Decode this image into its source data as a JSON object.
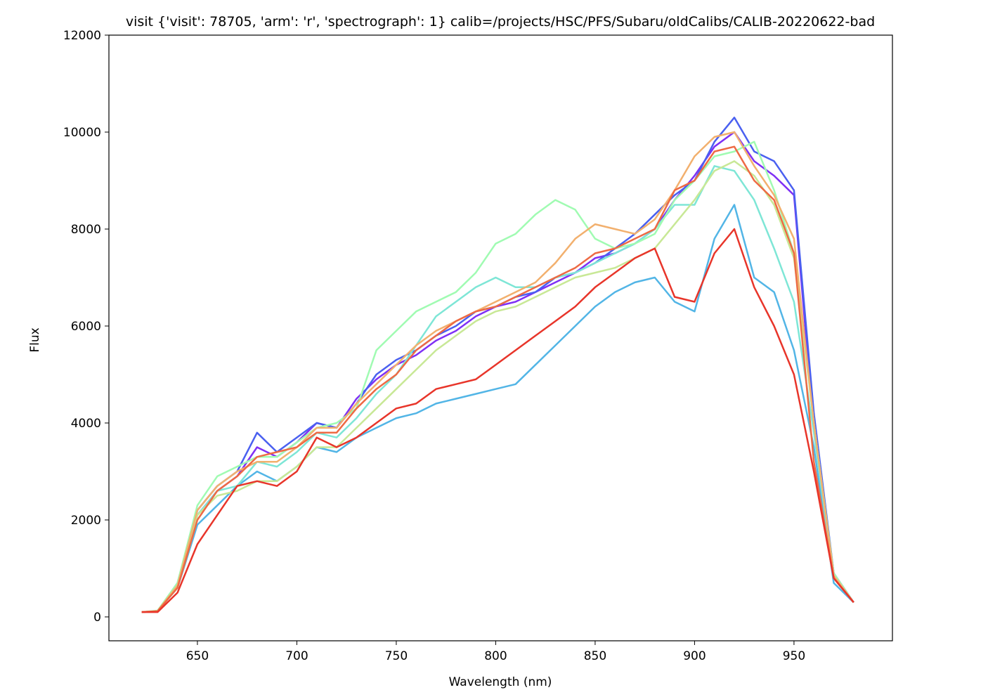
{
  "chart_data": {
    "type": "line",
    "title": "visit {'visit': 78705, 'arm': 'r', 'spectrograph': 1} calib=/projects/HSC/PFS/Subaru/oldCalibs/CALIB-20220622-bad",
    "x_label": "Wavelength (nm)",
    "y_label": "Flux",
    "x": [
      622,
      630,
      640,
      650,
      660,
      670,
      680,
      690,
      700,
      710,
      720,
      730,
      740,
      750,
      760,
      770,
      780,
      790,
      800,
      810,
      820,
      830,
      840,
      850,
      860,
      870,
      880,
      890,
      900,
      910,
      920,
      930,
      940,
      950,
      960,
      970,
      980
    ],
    "series": [
      {
        "color": "#7f30f5",
        "values": [
          100,
          120,
          650,
          2100,
          2600,
          2900,
          3500,
          3300,
          3600,
          4000,
          3900,
          4500,
          4900,
          5200,
          5400,
          5700,
          5900,
          6200,
          6400,
          6500,
          6700,
          6900,
          7100,
          7400,
          7500,
          7700,
          8000,
          8600,
          9100,
          9700,
          10000,
          9400,
          9100,
          8700,
          3900,
          900,
          300
        ]
      },
      {
        "color": "#4a60f0",
        "values": [
          100,
          120,
          700,
          2200,
          2700,
          3000,
          3800,
          3400,
          3700,
          4000,
          3900,
          4400,
          5000,
          5300,
          5500,
          5800,
          6000,
          6300,
          6400,
          6600,
          6700,
          7000,
          7100,
          7300,
          7600,
          7900,
          8300,
          8700,
          9000,
          9800,
          10300,
          9600,
          9400,
          8800,
          4200,
          900,
          300
        ]
      },
      {
        "color": "#52b5e6",
        "values": [
          100,
          120,
          600,
          1900,
          2300,
          2700,
          3000,
          2800,
          3100,
          3500,
          3400,
          3700,
          3900,
          4100,
          4200,
          4400,
          4500,
          4600,
          4700,
          4800,
          5200,
          5600,
          6000,
          6400,
          6700,
          6900,
          7000,
          6500,
          6300,
          7800,
          8500,
          7000,
          6700,
          5500,
          3500,
          700,
          300
        ]
      },
      {
        "color": "#7ee6d6",
        "values": [
          100,
          120,
          650,
          2100,
          2600,
          2700,
          3200,
          3100,
          3400,
          3800,
          3700,
          4100,
          4600,
          5000,
          5600,
          6200,
          6500,
          6800,
          7000,
          6800,
          6800,
          7000,
          7100,
          7300,
          7500,
          7700,
          8000,
          8500,
          8500,
          9300,
          9200,
          8600,
          7600,
          6500,
          3800,
          800,
          300
        ]
      },
      {
        "color": "#a0fbb2",
        "values": [
          100,
          130,
          700,
          2300,
          2900,
          3100,
          3300,
          3300,
          3600,
          3900,
          4000,
          4300,
          5500,
          5900,
          6300,
          6500,
          6700,
          7100,
          7700,
          7900,
          8300,
          8600,
          8400,
          7800,
          7600,
          7700,
          7900,
          8600,
          9000,
          9500,
          9600,
          9800,
          8800,
          7500,
          4000,
          900,
          300
        ]
      },
      {
        "color": "#c8e896",
        "values": [
          100,
          120,
          650,
          2100,
          2500,
          2600,
          2800,
          2800,
          3100,
          3500,
          3500,
          3900,
          4300,
          4700,
          5100,
          5500,
          5800,
          6100,
          6300,
          6400,
          6600,
          6800,
          7000,
          7100,
          7200,
          7400,
          7600,
          8100,
          8600,
          9200,
          9400,
          9100,
          8500,
          7400,
          4000,
          850,
          300
        ]
      },
      {
        "color": "#f2b06e",
        "values": [
          100,
          120,
          650,
          2200,
          2700,
          3000,
          3200,
          3200,
          3500,
          3900,
          3900,
          4400,
          4800,
          5200,
          5600,
          5900,
          6100,
          6300,
          6500,
          6700,
          6900,
          7300,
          7800,
          8100,
          8000,
          7900,
          8200,
          8800,
          9500,
          9900,
          10000,
          9300,
          8700,
          7800,
          4000,
          850,
          300
        ]
      },
      {
        "color": "#ee6a44",
        "values": [
          100,
          120,
          600,
          2000,
          2600,
          2900,
          3300,
          3400,
          3500,
          3800,
          3800,
          4300,
          4700,
          5000,
          5500,
          5800,
          6100,
          6300,
          6400,
          6600,
          6800,
          7000,
          7200,
          7500,
          7600,
          7800,
          8000,
          8800,
          9000,
          9600,
          9700,
          9000,
          8600,
          7500,
          3200,
          800,
          300
        ]
      },
      {
        "color": "#e8352a",
        "values": [
          100,
          100,
          500,
          1500,
          2100,
          2700,
          2800,
          2700,
          3000,
          3700,
          3500,
          3700,
          4000,
          4300,
          4400,
          4700,
          4800,
          4900,
          5200,
          5500,
          5800,
          6100,
          6400,
          6800,
          7100,
          7400,
          7600,
          6600,
          6500,
          7500,
          8000,
          6800,
          6000,
          5000,
          3000,
          800,
          300
        ]
      }
    ],
    "xlim": [
      605.5,
      999.5
    ],
    "ylim": [
      -493,
      12000
    ],
    "xticks": [
      650,
      700,
      750,
      800,
      850,
      900,
      950
    ],
    "yticks": [
      0,
      2000,
      4000,
      6000,
      8000,
      10000,
      12000
    ]
  }
}
